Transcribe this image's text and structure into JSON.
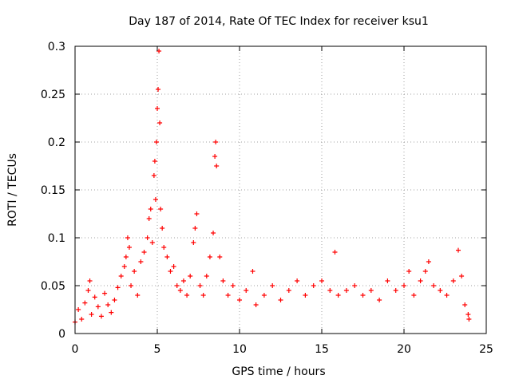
{
  "chart_data": {
    "type": "scatter",
    "title": "Day 187 of 2014, Rate Of TEC Index for receiver ksu1",
    "xlabel": "GPS time / hours",
    "ylabel": "ROTI / TECUs",
    "xlim": [
      0,
      25
    ],
    "ylim": [
      0,
      0.3
    ],
    "grid": true,
    "marker": "+",
    "x_ticks": [
      {
        "value": 0,
        "label": "0"
      },
      {
        "value": 5,
        "label": "5"
      },
      {
        "value": 10,
        "label": "10"
      },
      {
        "value": 15,
        "label": "15"
      },
      {
        "value": 20,
        "label": "20"
      },
      {
        "value": 25,
        "label": "25"
      }
    ],
    "y_ticks": [
      {
        "value": 0,
        "label": "0"
      },
      {
        "value": 0.05,
        "label": "0.05"
      },
      {
        "value": 0.1,
        "label": "0.1"
      },
      {
        "value": 0.15,
        "label": "0.15"
      },
      {
        "value": 0.2,
        "label": "0.2"
      },
      {
        "value": 0.25,
        "label": "0.25"
      },
      {
        "value": 0.3,
        "label": "0.3"
      }
    ],
    "series": [
      {
        "name": "ROTI",
        "color": "#ff0000",
        "points": [
          [
            0.0,
            0.012
          ],
          [
            0.2,
            0.025
          ],
          [
            0.4,
            0.015
          ],
          [
            0.6,
            0.032
          ],
          [
            0.8,
            0.045
          ],
          [
            0.9,
            0.055
          ],
          [
            1.0,
            0.02
          ],
          [
            1.2,
            0.038
          ],
          [
            1.4,
            0.028
          ],
          [
            1.6,
            0.018
          ],
          [
            1.8,
            0.042
          ],
          [
            2.0,
            0.03
          ],
          [
            2.2,
            0.022
          ],
          [
            2.4,
            0.035
          ],
          [
            2.6,
            0.048
          ],
          [
            2.8,
            0.06
          ],
          [
            3.0,
            0.07
          ],
          [
            3.1,
            0.08
          ],
          [
            3.2,
            0.1
          ],
          [
            3.3,
            0.09
          ],
          [
            3.4,
            0.05
          ],
          [
            3.6,
            0.065
          ],
          [
            3.8,
            0.04
          ],
          [
            4.0,
            0.075
          ],
          [
            4.2,
            0.085
          ],
          [
            4.4,
            0.1
          ],
          [
            4.5,
            0.12
          ],
          [
            4.6,
            0.13
          ],
          [
            4.7,
            0.095
          ],
          [
            4.8,
            0.165
          ],
          [
            4.85,
            0.18
          ],
          [
            4.9,
            0.14
          ],
          [
            4.95,
            0.2
          ],
          [
            5.0,
            0.235
          ],
          [
            5.05,
            0.255
          ],
          [
            5.1,
            0.295
          ],
          [
            5.15,
            0.22
          ],
          [
            5.2,
            0.13
          ],
          [
            5.3,
            0.11
          ],
          [
            5.4,
            0.09
          ],
          [
            5.6,
            0.08
          ],
          [
            5.8,
            0.065
          ],
          [
            6.0,
            0.07
          ],
          [
            6.2,
            0.05
          ],
          [
            6.4,
            0.045
          ],
          [
            6.6,
            0.055
          ],
          [
            6.8,
            0.04
          ],
          [
            7.0,
            0.06
          ],
          [
            7.2,
            0.095
          ],
          [
            7.3,
            0.11
          ],
          [
            7.4,
            0.125
          ],
          [
            7.6,
            0.05
          ],
          [
            7.8,
            0.04
          ],
          [
            8.0,
            0.06
          ],
          [
            8.2,
            0.08
          ],
          [
            8.4,
            0.105
          ],
          [
            8.5,
            0.185
          ],
          [
            8.55,
            0.2
          ],
          [
            8.6,
            0.175
          ],
          [
            8.8,
            0.08
          ],
          [
            9.0,
            0.055
          ],
          [
            9.3,
            0.04
          ],
          [
            9.6,
            0.05
          ],
          [
            10.0,
            0.035
          ],
          [
            10.4,
            0.045
          ],
          [
            10.8,
            0.065
          ],
          [
            11.0,
            0.03
          ],
          [
            11.5,
            0.04
          ],
          [
            12.0,
            0.05
          ],
          [
            12.5,
            0.035
          ],
          [
            13.0,
            0.045
          ],
          [
            13.5,
            0.055
          ],
          [
            14.0,
            0.04
          ],
          [
            14.5,
            0.05
          ],
          [
            15.0,
            0.055
          ],
          [
            15.5,
            0.045
          ],
          [
            15.8,
            0.085
          ],
          [
            16.0,
            0.04
          ],
          [
            16.5,
            0.045
          ],
          [
            17.0,
            0.05
          ],
          [
            17.5,
            0.04
          ],
          [
            18.0,
            0.045
          ],
          [
            18.5,
            0.035
          ],
          [
            19.0,
            0.055
          ],
          [
            19.5,
            0.045
          ],
          [
            20.0,
            0.05
          ],
          [
            20.3,
            0.065
          ],
          [
            20.6,
            0.04
          ],
          [
            21.0,
            0.055
          ],
          [
            21.3,
            0.065
          ],
          [
            21.5,
            0.075
          ],
          [
            21.8,
            0.05
          ],
          [
            22.2,
            0.045
          ],
          [
            22.6,
            0.04
          ],
          [
            23.0,
            0.055
          ],
          [
            23.3,
            0.087
          ],
          [
            23.5,
            0.06
          ],
          [
            23.7,
            0.03
          ],
          [
            23.9,
            0.02
          ],
          [
            23.95,
            0.015
          ]
        ]
      }
    ]
  }
}
